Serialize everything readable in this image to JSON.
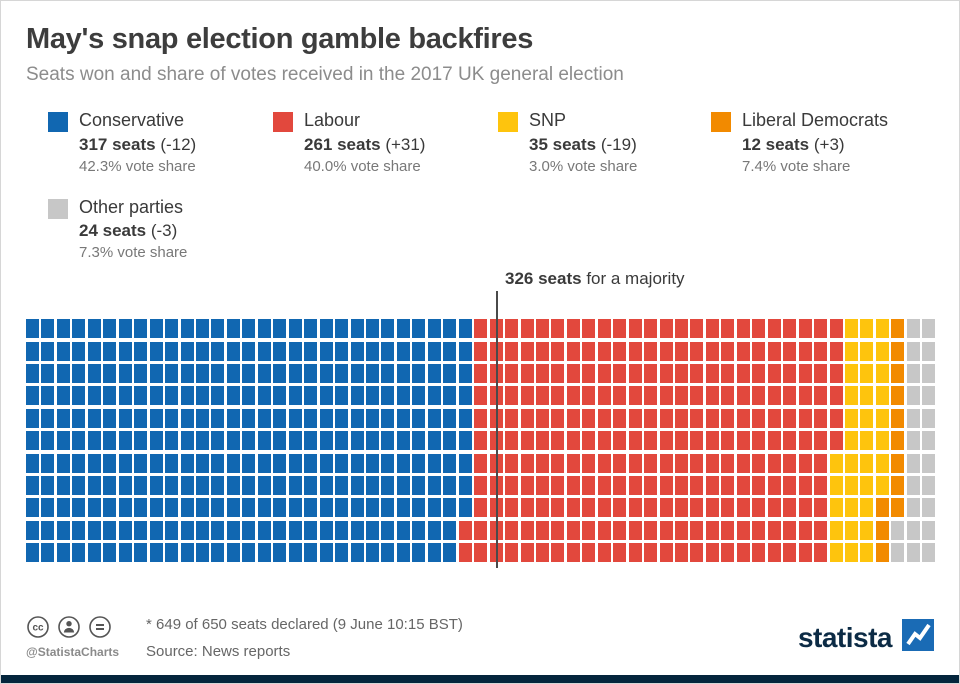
{
  "header": {
    "title": "May's snap election gamble backfires",
    "subtitle": "Seats won and share of votes received in the 2017 UK general election"
  },
  "legend": [
    {
      "name": "Conservative",
      "seats": "317 seats",
      "change": "(-12)",
      "share": "42.3% vote share",
      "color": "#1167b1"
    },
    {
      "name": "Labour",
      "seats": "261 seats",
      "change": "(+31)",
      "share": "40.0% vote share",
      "color": "#e2483d"
    },
    {
      "name": "SNP",
      "seats": "35 seats",
      "change": "(-19)",
      "share": "3.0% vote share",
      "color": "#fec40d"
    },
    {
      "name": "Liberal Democrats",
      "seats": "12 seats",
      "change": "(+3)",
      "share": "7.4% vote share",
      "color": "#f28a00"
    },
    {
      "name": "Other parties",
      "seats": "24 seats",
      "change": "(-3)",
      "share": "7.3% vote share",
      "color": "#c7c7c7"
    }
  ],
  "annotation": {
    "bold": "326 seats",
    "rest": "for a majority"
  },
  "chart_data": {
    "type": "waffle",
    "title": "May's snap election gamble backfires",
    "subtitle": "Seats won and share of votes received in the 2017 UK general election",
    "rows": 11,
    "columns": 59,
    "total_seats_shown": 649,
    "total_seats": 650,
    "majority_seats": 326,
    "fill_order": "column-major-left-to-right",
    "series": [
      {
        "name": "Conservative",
        "seats": 317,
        "seat_change": -12,
        "vote_share_pct": 42.3,
        "color": "#1167b1"
      },
      {
        "name": "Labour",
        "seats": 261,
        "seat_change": 31,
        "vote_share_pct": 40.0,
        "color": "#e2483d"
      },
      {
        "name": "SNP",
        "seats": 35,
        "seat_change": -19,
        "vote_share_pct": 3.0,
        "color": "#fec40d"
      },
      {
        "name": "Liberal Democrats",
        "seats": 12,
        "seat_change": 3,
        "vote_share_pct": 7.4,
        "color": "#f28a00"
      },
      {
        "name": "Other parties",
        "seats": 24,
        "seat_change": -3,
        "vote_share_pct": 7.3,
        "color": "#c7c7c7"
      }
    ]
  },
  "footer": {
    "note": "* 649 of 650 seats declared (9 June 10:15 BST)",
    "source": "Source: News reports",
    "credit": "@StatistaCharts",
    "brand": "statista",
    "license_icons": [
      "cc-icon",
      "attribution-person-icon",
      "no-derivatives-equals-icon"
    ]
  },
  "colors": {
    "brand_navy": "#0c2b45",
    "brand_blue": "#1a6bb5",
    "bottom_bar": "#04253c",
    "majority_line": "#4a4a4a"
  }
}
